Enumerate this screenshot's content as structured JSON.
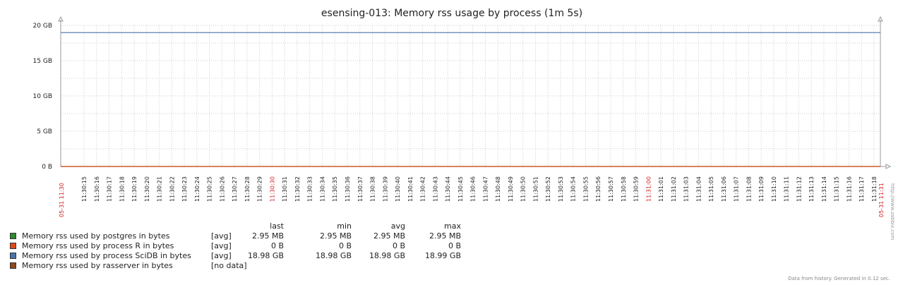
{
  "chart_data": {
    "type": "line",
    "title": "esensing-013: Memory rss usage by process (1m 5s)",
    "ylim": [
      0,
      20
    ],
    "yticks": [
      "0 B",
      "5 GB",
      "10 GB",
      "15 GB",
      "20 GB"
    ],
    "x_start_label": "05-31 11:30",
    "x_end_label": "05-31 11:31",
    "x_major_labels": [
      "11:30:30",
      "11:31:00"
    ],
    "x_tick_labels": [
      "11:30:15",
      "11:30:16",
      "11:30:17",
      "11:30:18",
      "11:30:19",
      "11:30:20",
      "11:30:21",
      "11:30:22",
      "11:30:23",
      "11:30:24",
      "11:30:25",
      "11:30:26",
      "11:30:27",
      "11:30:28",
      "11:30:29",
      "11:30:30",
      "11:30:31",
      "11:30:32",
      "11:30:33",
      "11:30:34",
      "11:30:35",
      "11:30:36",
      "11:30:37",
      "11:30:38",
      "11:30:39",
      "11:30:40",
      "11:30:41",
      "11:30:42",
      "11:30:43",
      "11:30:44",
      "11:30:45",
      "11:30:46",
      "11:30:47",
      "11:30:48",
      "11:30:49",
      "11:30:50",
      "11:30:51",
      "11:30:52",
      "11:30:53",
      "11:30:54",
      "11:30:55",
      "11:30:56",
      "11:30:57",
      "11:30:58",
      "11:30:59",
      "11:31:00",
      "11:31:01",
      "11:31:02",
      "11:31:03",
      "11:31:04",
      "11:31:05",
      "11:31:06",
      "11:31:07",
      "11:31:08",
      "11:31:09",
      "11:31:10",
      "11:31:11",
      "11:31:12",
      "11:31:13",
      "11:31:14",
      "11:31:15",
      "11:31:16",
      "11:31:17",
      "11:31:18"
    ],
    "series": [
      {
        "name": "Memory rss used by postgres in bytes",
        "color": "#2f8a2f",
        "value": 0.00295
      },
      {
        "name": "Memory rss used by process R in bytes",
        "color": "#e04a1a",
        "value": 0
      },
      {
        "name": "Memory rss used by process SciDB in bytes",
        "color": "#4a74a8",
        "value": 18.98
      },
      {
        "name": "Memory rss used by rasserver in bytes",
        "color": "#8c4a1e",
        "value": null
      }
    ]
  },
  "legend": {
    "headers": {
      "last": "last",
      "min": "min",
      "avg": "avg",
      "max": "max"
    },
    "rows": [
      {
        "name": "Memory rss used by postgres in bytes",
        "fn": "[avg]",
        "last": "2.95 MB",
        "min": "2.95 MB",
        "avg": "2.95 MB",
        "max": "2.95 MB",
        "color": "#2f8a2f"
      },
      {
        "name": "Memory rss used by process R in bytes",
        "fn": "[avg]",
        "last": "0 B",
        "min": "0 B",
        "avg": "0 B",
        "max": "0 B",
        "color": "#e04a1a"
      },
      {
        "name": "Memory rss used by process SciDB in bytes",
        "fn": "[avg]",
        "last": "18.98 GB",
        "min": "18.98 GB",
        "avg": "18.98 GB",
        "max": "18.99 GB",
        "color": "#4a74a8"
      },
      {
        "name": "Memory rss used by rasserver in bytes",
        "fn": "[no data]",
        "last": "",
        "min": "",
        "avg": "",
        "max": "",
        "color": "#8c4a1e"
      }
    ]
  },
  "footer": "Data from history. Generated in 0.12 sec.",
  "watermark": "http://www.zabbix.com"
}
